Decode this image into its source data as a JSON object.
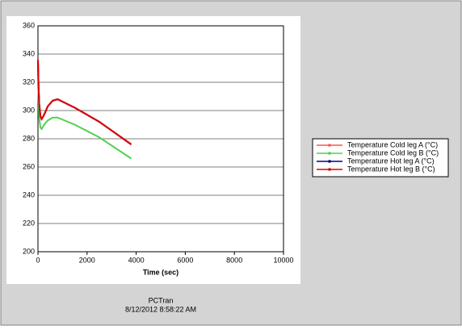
{
  "chart_data": {
    "type": "line",
    "x_label": "Time (sec)",
    "x": [
      0,
      20,
      50,
      100,
      150,
      250,
      400,
      600,
      800,
      1500,
      2500,
      3800
    ],
    "series": [
      {
        "name": "Temperature Cold leg A (°C)",
        "color": "#ff5050",
        "values": [
          334,
          318,
          304,
          296,
          294,
          297,
          303,
          307,
          308,
          302,
          292,
          276
        ]
      },
      {
        "name": "Temperature Cold leg B (°C)",
        "color": "#50d050",
        "values": [
          330,
          310,
          295,
          288,
          287,
          290,
          293,
          295,
          295,
          290,
          281,
          266
        ]
      },
      {
        "name": "Temperature Hot leg A (°C)",
        "color": "#000080",
        "values": [
          336,
          320,
          305,
          296,
          294,
          297,
          303,
          307,
          308,
          302,
          292,
          276
        ]
      },
      {
        "name": "Temperature Hot leg B (°C)",
        "color": "#e00000",
        "values": [
          336,
          320,
          305,
          296,
          294,
          297,
          303,
          307,
          308,
          302,
          292,
          276
        ]
      }
    ],
    "xlim": [
      0,
      10000
    ],
    "xticks": [
      0,
      2000,
      4000,
      6000,
      8000,
      10000
    ],
    "ylim": [
      200,
      360
    ],
    "yticks": [
      200,
      220,
      240,
      260,
      280,
      300,
      320,
      340,
      360
    ],
    "grid": true
  },
  "footer": {
    "app": "PCTran",
    "timestamp": "8/12/2012 8:58:22 AM"
  }
}
